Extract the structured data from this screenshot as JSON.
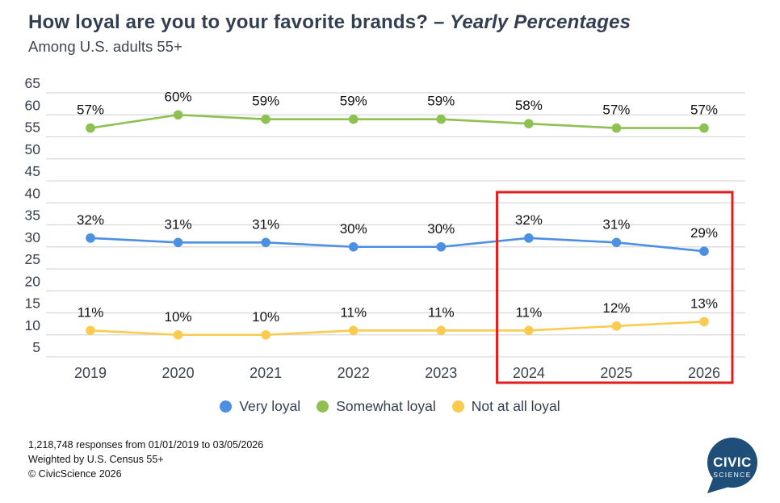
{
  "title": {
    "main": "How loyal are you to your favorite brands?",
    "emphasis": "– Yearly Percentages",
    "subtitle": "Among U.S. adults 55+"
  },
  "chart_data": {
    "type": "line",
    "x": [
      "2019",
      "2020",
      "2021",
      "2022",
      "2023",
      "2024",
      "2025",
      "2026"
    ],
    "series": [
      {
        "name": "Very loyal",
        "color": "#4C90E3",
        "values": [
          32,
          31,
          31,
          30,
          30,
          32,
          31,
          29
        ]
      },
      {
        "name": "Somewhat loyal",
        "color": "#8EC152",
        "values": [
          57,
          60,
          59,
          59,
          59,
          58,
          57,
          57
        ]
      },
      {
        "name": "Not at all loyal",
        "color": "#FBCB4F",
        "values": [
          11,
          10,
          10,
          11,
          11,
          11,
          12,
          13
        ]
      }
    ],
    "data_label_format": "{v}%",
    "ylim": [
      5,
      65
    ],
    "ytick_step": 5,
    "grid": true,
    "legend_position": "bottom",
    "highlight": {
      "type": "rect",
      "x_range": [
        "2024",
        "2026"
      ],
      "color": "#E21D1D"
    }
  },
  "footer": {
    "line1": "1,218,748 responses from 01/01/2019 to 03/05/2026",
    "line2": "Weighted by U.S. Census 55+",
    "line3": "© CivicScience 2026"
  },
  "logo": {
    "top": "CIVIC",
    "bottom": "SCIENCE"
  },
  "colors": {
    "title": "#333F50",
    "subtitle": "#3E4751",
    "grid": "#D9D9D9",
    "axis_text": "#39424E",
    "data_label_text": "#111111",
    "legend_text": "#333F50",
    "footer_text": "#111111",
    "logo_navy": "#1F4E79",
    "background": "#FFFFFF",
    "highlight_red": "#E21D1D"
  }
}
